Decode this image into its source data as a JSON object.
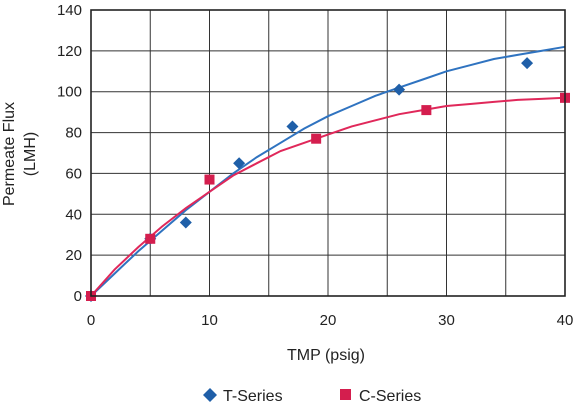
{
  "chart_data": {
    "type": "scatter",
    "xlabel": "TMP (psig)",
    "ylabel_lines": [
      "Permeate Flux",
      "(LMH)"
    ],
    "xlim": [
      0,
      40
    ],
    "ylim": [
      0,
      140
    ],
    "xticks": [
      0,
      10,
      20,
      30,
      40
    ],
    "yticks": [
      0,
      20,
      40,
      60,
      80,
      100,
      120,
      140
    ],
    "grid": true,
    "legend_position": "bottom",
    "series": [
      {
        "name": "T-Series",
        "marker": "diamond",
        "color": "#1f5fa8",
        "line_color": "#2f73c0",
        "points": [
          [
            0,
            0
          ],
          [
            5,
            28
          ],
          [
            8,
            36
          ],
          [
            12.5,
            65
          ],
          [
            17,
            83
          ],
          [
            26,
            101
          ],
          [
            36.8,
            114
          ]
        ],
        "curve": [
          [
            0,
            0
          ],
          [
            2,
            11
          ],
          [
            4,
            22
          ],
          [
            6,
            32
          ],
          [
            8,
            42
          ],
          [
            10,
            51
          ],
          [
            12,
            60
          ],
          [
            14,
            68
          ],
          [
            16,
            75
          ],
          [
            18,
            82
          ],
          [
            20,
            88
          ],
          [
            22,
            93
          ],
          [
            24,
            98
          ],
          [
            26,
            102
          ],
          [
            28,
            106
          ],
          [
            30,
            110
          ],
          [
            32,
            113
          ],
          [
            34,
            116
          ],
          [
            36,
            118
          ],
          [
            38,
            120
          ],
          [
            40,
            122
          ]
        ]
      },
      {
        "name": "C-Series",
        "marker": "square",
        "color": "#d41e4e",
        "line_color": "#e0285a",
        "points": [
          [
            0,
            0
          ],
          [
            5,
            28
          ],
          [
            10,
            57
          ],
          [
            19,
            77
          ],
          [
            28.3,
            91
          ],
          [
            40,
            97
          ]
        ],
        "curve": [
          [
            0,
            0
          ],
          [
            2,
            13
          ],
          [
            4,
            24
          ],
          [
            6,
            34
          ],
          [
            8,
            43
          ],
          [
            10,
            51
          ],
          [
            12,
            59
          ],
          [
            14,
            65
          ],
          [
            16,
            71
          ],
          [
            18,
            75
          ],
          [
            20,
            79
          ],
          [
            22,
            83
          ],
          [
            24,
            86
          ],
          [
            26,
            89
          ],
          [
            28,
            91
          ],
          [
            30,
            93
          ],
          [
            32,
            94
          ],
          [
            34,
            95
          ],
          [
            36,
            96
          ],
          [
            38,
            96.5
          ],
          [
            40,
            97
          ]
        ]
      }
    ]
  }
}
